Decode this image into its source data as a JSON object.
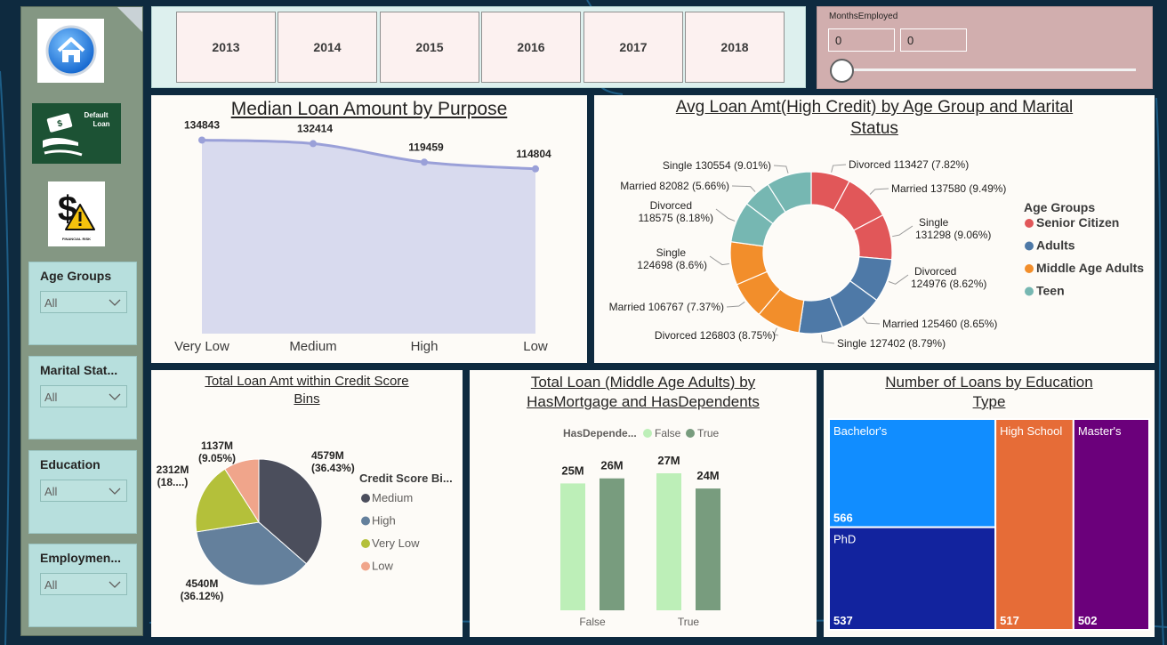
{
  "sidebar": {
    "nav": [
      {
        "name": "home-icon"
      },
      {
        "name": "default-loan-icon",
        "caption_1": "Default",
        "caption_2": "Loan"
      },
      {
        "name": "financial-risk-icon",
        "caption": "FINANCIAL RISK"
      }
    ],
    "slicers": [
      {
        "title": "Age Groups",
        "value": "All"
      },
      {
        "title": "Marital Stat...",
        "value": "All"
      },
      {
        "title": "Education",
        "value": "All"
      },
      {
        "title": "Employmen...",
        "value": "All"
      }
    ]
  },
  "years": [
    "2013",
    "2014",
    "2015",
    "2016",
    "2017",
    "2018"
  ],
  "months_employed": {
    "title": "MonthsEmployed",
    "min": "0",
    "max": "0"
  },
  "charts": {
    "median_loan": {
      "title": "Median Loan Amount by Purpose"
    },
    "avg_loan": {
      "title_1": "Avg Loan Amt(High Credit) by Age Group and Marital",
      "title_2": "Status"
    },
    "credit_bins": {
      "title_1": "Total Loan Amt within Credit Score",
      "title_2": "Bins"
    },
    "middle_age": {
      "title_1": "Total Loan (Middle Age Adults) by",
      "title_2": "HasMortgage and HasDependents"
    },
    "education": {
      "title_1": "Number of Loans by Education",
      "title_2": "Type"
    }
  },
  "chart_data": [
    {
      "type": "area",
      "title": "Median Loan Amount by Purpose",
      "categories": [
        "Very Low",
        "Medium",
        "High",
        "Low"
      ],
      "values": [
        134843,
        132414,
        119459,
        114804
      ],
      "labels": [
        "134843",
        "132414",
        "119459",
        "114804"
      ],
      "ylim": [
        0,
        137000
      ],
      "color": "#9aa0d8",
      "fill": "#d8daee"
    },
    {
      "type": "pie",
      "title": "Avg Loan Amt(High Credit) by Age Group and Marital Status",
      "donut": true,
      "legend_title": "Age Groups",
      "legend": [
        {
          "name": "Senior Citizen",
          "color": "#e15759"
        },
        {
          "name": "Adults",
          "color": "#4e79a7"
        },
        {
          "name": "Middle Age Adults",
          "color": "#f28e2b"
        },
        {
          "name": "Teen",
          "color": "#76b7b2"
        }
      ],
      "slices": [
        {
          "group": "Senior Citizen",
          "label": "Divorced 113427 (7.82%)",
          "value": 113427
        },
        {
          "group": "Senior Citizen",
          "label": "Married 137580 (9.49%)",
          "value": 137580
        },
        {
          "group": "Senior Citizen",
          "label_1": "Single",
          "label_2": "131298 (9.06%)",
          "value": 131298
        },
        {
          "group": "Adults",
          "label_1": "Divorced",
          "label_2": "124976 (8.62%)",
          "value": 124976
        },
        {
          "group": "Adults",
          "label": "Married 125460 (8.65%)",
          "value": 125460
        },
        {
          "group": "Adults",
          "label": "Single 127402 (8.79%)",
          "value": 127402
        },
        {
          "group": "Middle Age Adults",
          "label": "Divorced 126803 (8.75%)",
          "value": 126803
        },
        {
          "group": "Middle Age Adults",
          "label": "Married 106767 (7.37%)",
          "value": 106767
        },
        {
          "group": "Middle Age Adults",
          "label_1": "Single",
          "label_2": "124698 (8.6%)",
          "value": 124698
        },
        {
          "group": "Teen",
          "label_1": "Divorced",
          "label_2": "118575 (8.18%)",
          "value": 118575
        },
        {
          "group": "Teen",
          "label": "Married 82082 (5.66%)",
          "value": 82082
        },
        {
          "group": "Teen",
          "label": "Single 130554 (9.01%)",
          "value": 130554
        }
      ]
    },
    {
      "type": "pie",
      "title": "Total Loan Amt within Credit Score Bins",
      "legend_title": "Credit Score Bi...",
      "slices": [
        {
          "name": "Medium",
          "value": 4579,
          "label_1": "4579M",
          "label_2": "(36.43%)",
          "color": "#4b4e5c"
        },
        {
          "name": "High",
          "value": 4540,
          "label_1": "4540M",
          "label_2": "(36.12%)",
          "color": "#64809c"
        },
        {
          "name": "Very Low",
          "value": 2312,
          "label_1": "2312M",
          "label_2": "(18....)",
          "color": "#b4c03a"
        },
        {
          "name": "Low",
          "value": 1137,
          "label_1": "1137M",
          "label_2": "(9.05%)",
          "color": "#f0a58b"
        }
      ]
    },
    {
      "type": "bar",
      "title": "Total Loan (Middle Age Adults) by HasMortgage and HasDependents",
      "legend_title": "HasDepende...",
      "categories": [
        "False",
        "True"
      ],
      "series": [
        {
          "name": "False",
          "color": "#bdefb8",
          "values": [
            25,
            27
          ],
          "labels": [
            "25M",
            "27M"
          ]
        },
        {
          "name": "True",
          "color": "#789c7e",
          "values": [
            26,
            24
          ],
          "labels": [
            "26M",
            "24M"
          ]
        }
      ],
      "ylim": [
        0,
        27
      ]
    },
    {
      "type": "treemap",
      "title": "Number of Loans by Education Type",
      "items": [
        {
          "name": "Bachelor's",
          "value": 566,
          "label": "566",
          "color": "#118dff"
        },
        {
          "name": "PhD",
          "value": 537,
          "label": "537",
          "color": "#12239e"
        },
        {
          "name": "High School",
          "value": 517,
          "label": "517",
          "color": "#e66c37"
        },
        {
          "name": "Master's",
          "value": 502,
          "label": "502",
          "color": "#6b007b"
        }
      ]
    }
  ]
}
